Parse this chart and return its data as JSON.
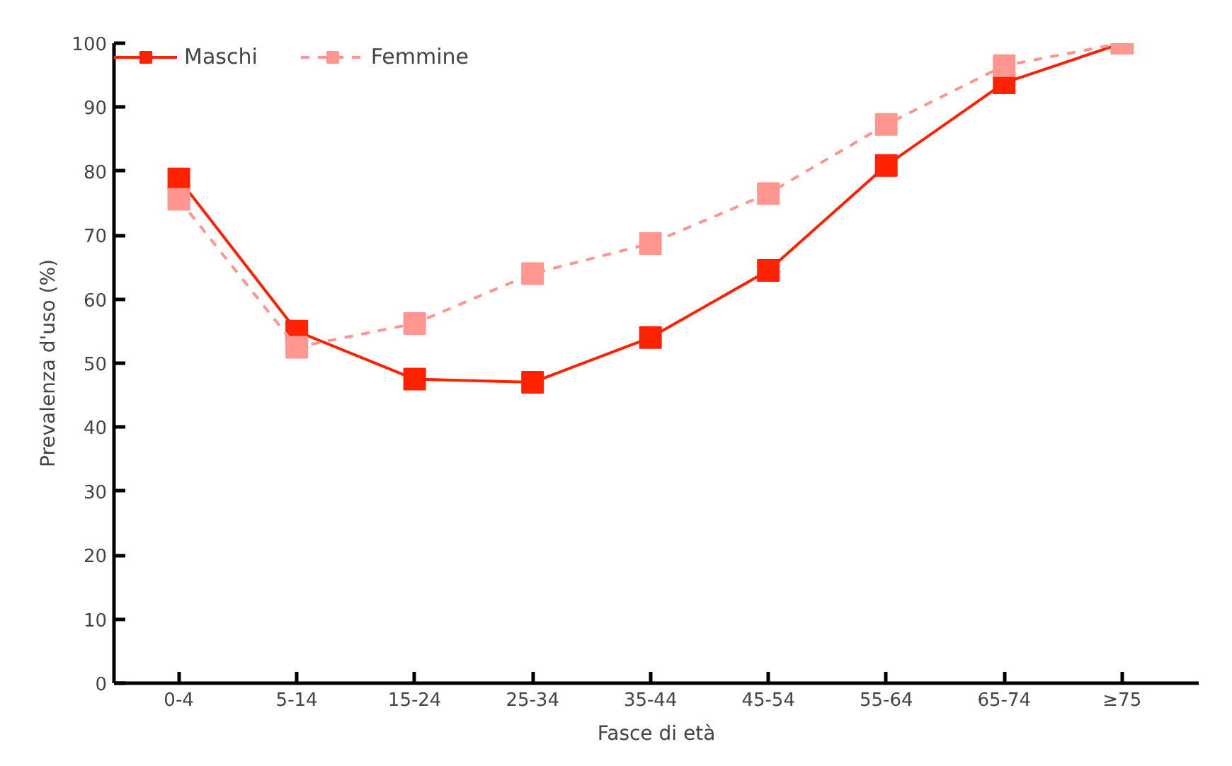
{
  "chart_data": {
    "type": "line",
    "xlabel": "Fasce di età",
    "ylabel": "Prevalenza d'uso (%)",
    "categories": [
      "0-4",
      "5-14",
      "15-24",
      "25-34",
      "35-44",
      "45-54",
      "55-64",
      "65-74",
      "≥75"
    ],
    "series": [
      {
        "name": "Maschi",
        "color": "#ff2200",
        "line_style": "solid",
        "values": [
          78.8,
          55,
          47.5,
          47,
          54,
          64.5,
          80.9,
          93.8,
          100
        ]
      },
      {
        "name": "Femmine",
        "color": "#ff9690",
        "line_style": "dashed",
        "values": [
          75.6,
          52.5,
          56.2,
          64,
          68.7,
          76.5,
          87.3,
          96.5,
          100
        ]
      }
    ],
    "ylim": [
      0,
      100
    ],
    "yticks": [
      0,
      10,
      20,
      30,
      40,
      50,
      60,
      70,
      80,
      90,
      100
    ],
    "marker": "square",
    "grid": false,
    "legend": "top left"
  }
}
